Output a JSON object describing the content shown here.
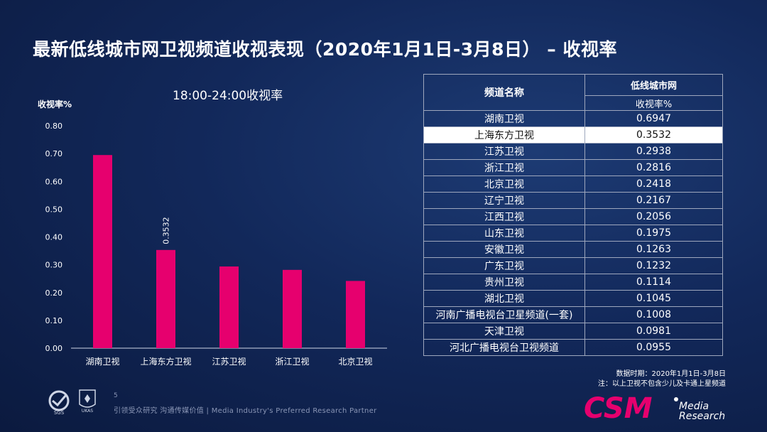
{
  "page": {
    "title": "最新低线城市网卫视频道收视表现（2020年1月1日-3月8日） – 收视率",
    "page_number": "5",
    "footer_text": "引领受众研究  沟通传媒价值 | Media  Industry's  Preferred  Research  Partner",
    "note_line1": "数据时期：2020年1月1日-3月8日",
    "note_line2": "注：以上卫视不包含少儿及卡通上星频道"
  },
  "logos": {
    "csm_text": "CSM",
    "csm_sub1": "Media",
    "csm_sub2": "Research",
    "sgs_text": "SGS",
    "ukas_text": "UKAS"
  },
  "colors": {
    "bar": "#e6006e",
    "background": "#12285a",
    "highlight_row": "#ffffff"
  },
  "chart_data": {
    "type": "bar",
    "title": "18:00-24:00收视率",
    "ylabel": "收视率%",
    "xlabel": "",
    "categories": [
      "湖南卫视",
      "上海东方卫视",
      "江苏卫视",
      "浙江卫视",
      "北京卫视"
    ],
    "values": [
      0.6947,
      0.3532,
      0.2938,
      0.2816,
      0.2418
    ],
    "ylim": [
      0,
      0.8
    ],
    "yticks": [
      "0.00",
      "0.10",
      "0.20",
      "0.30",
      "0.40",
      "0.50",
      "0.60",
      "0.70",
      "0.80"
    ],
    "data_labels": [
      null,
      "0.3532",
      null,
      null,
      null
    ],
    "grid": false,
    "legend": "none"
  },
  "table": {
    "header_col1": "频道名称",
    "header_col2": "低线城市网",
    "header_col2_sub": "收视率%",
    "highlight_row": 1,
    "rows": [
      {
        "channel": "湖南卫视",
        "value": "0.6947"
      },
      {
        "channel": "上海东方卫视",
        "value": "0.3532"
      },
      {
        "channel": "江苏卫视",
        "value": "0.2938"
      },
      {
        "channel": "浙江卫视",
        "value": "0.2816"
      },
      {
        "channel": "北京卫视",
        "value": "0.2418"
      },
      {
        "channel": "辽宁卫视",
        "value": "0.2167"
      },
      {
        "channel": "江西卫视",
        "value": "0.2056"
      },
      {
        "channel": "山东卫视",
        "value": "0.1975"
      },
      {
        "channel": "安徽卫视",
        "value": "0.1263"
      },
      {
        "channel": "广东卫视",
        "value": "0.1232"
      },
      {
        "channel": "贵州卫视",
        "value": "0.1114"
      },
      {
        "channel": "湖北卫视",
        "value": "0.1045"
      },
      {
        "channel": "河南广播电视台卫星频道(一套)",
        "value": "0.1008"
      },
      {
        "channel": "天津卫视",
        "value": "0.0981"
      },
      {
        "channel": "河北广播电视台卫视频道",
        "value": "0.0955"
      }
    ]
  }
}
